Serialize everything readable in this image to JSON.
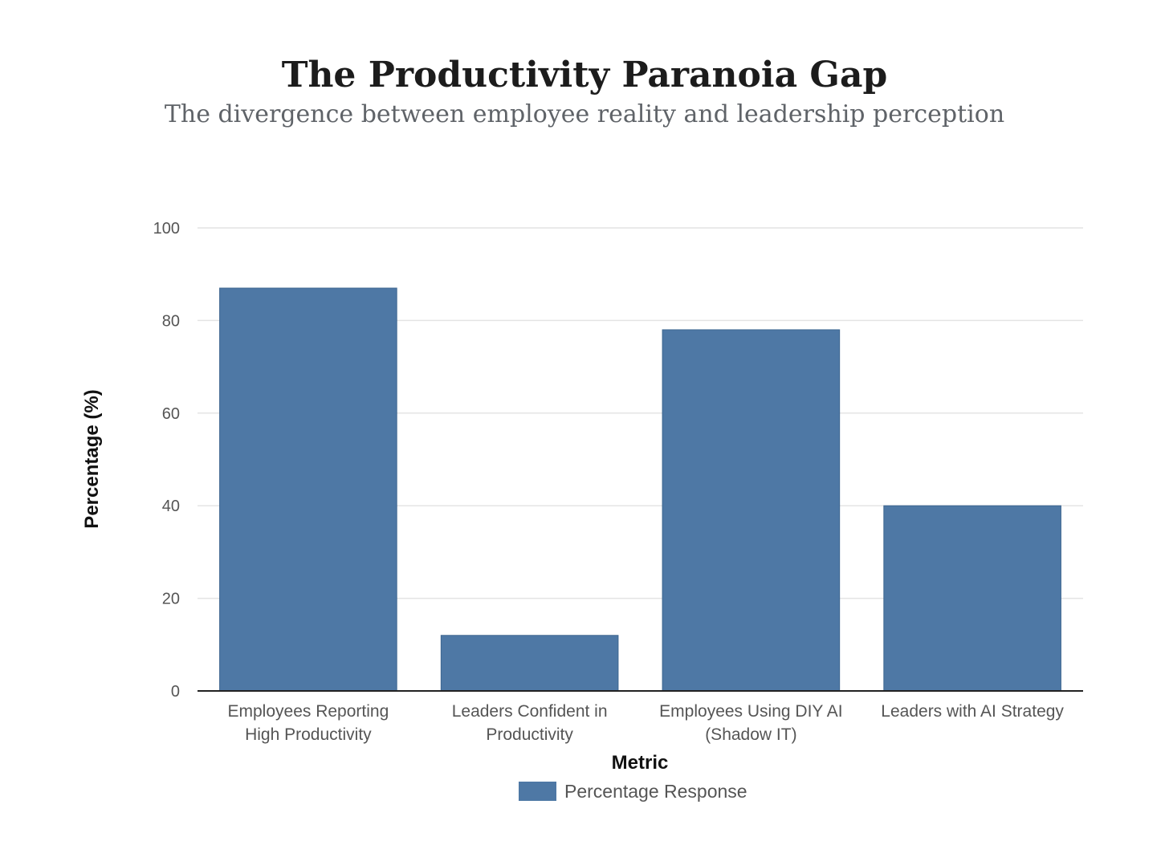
{
  "chart_data": {
    "type": "bar",
    "title": "The Productivity Paranoia Gap",
    "subtitle": "The divergence between employee reality and leadership perception",
    "xlabel": "Metric",
    "ylabel": "Percentage (%)",
    "ylim": [
      0,
      100
    ],
    "yticks": [
      0,
      20,
      40,
      60,
      80,
      100
    ],
    "grid": true,
    "legend_position": "bottom",
    "categories": [
      [
        "Employees Reporting",
        "High Productivity"
      ],
      [
        "Leaders Confident in",
        "Productivity"
      ],
      [
        "Employees Using DIY AI",
        "(Shadow IT)"
      ],
      [
        "Leaders with AI Strategy"
      ]
    ],
    "series": [
      {
        "name": "Percentage Response",
        "color": "#4e78a5",
        "values": [
          87,
          12,
          78,
          40
        ]
      }
    ]
  }
}
